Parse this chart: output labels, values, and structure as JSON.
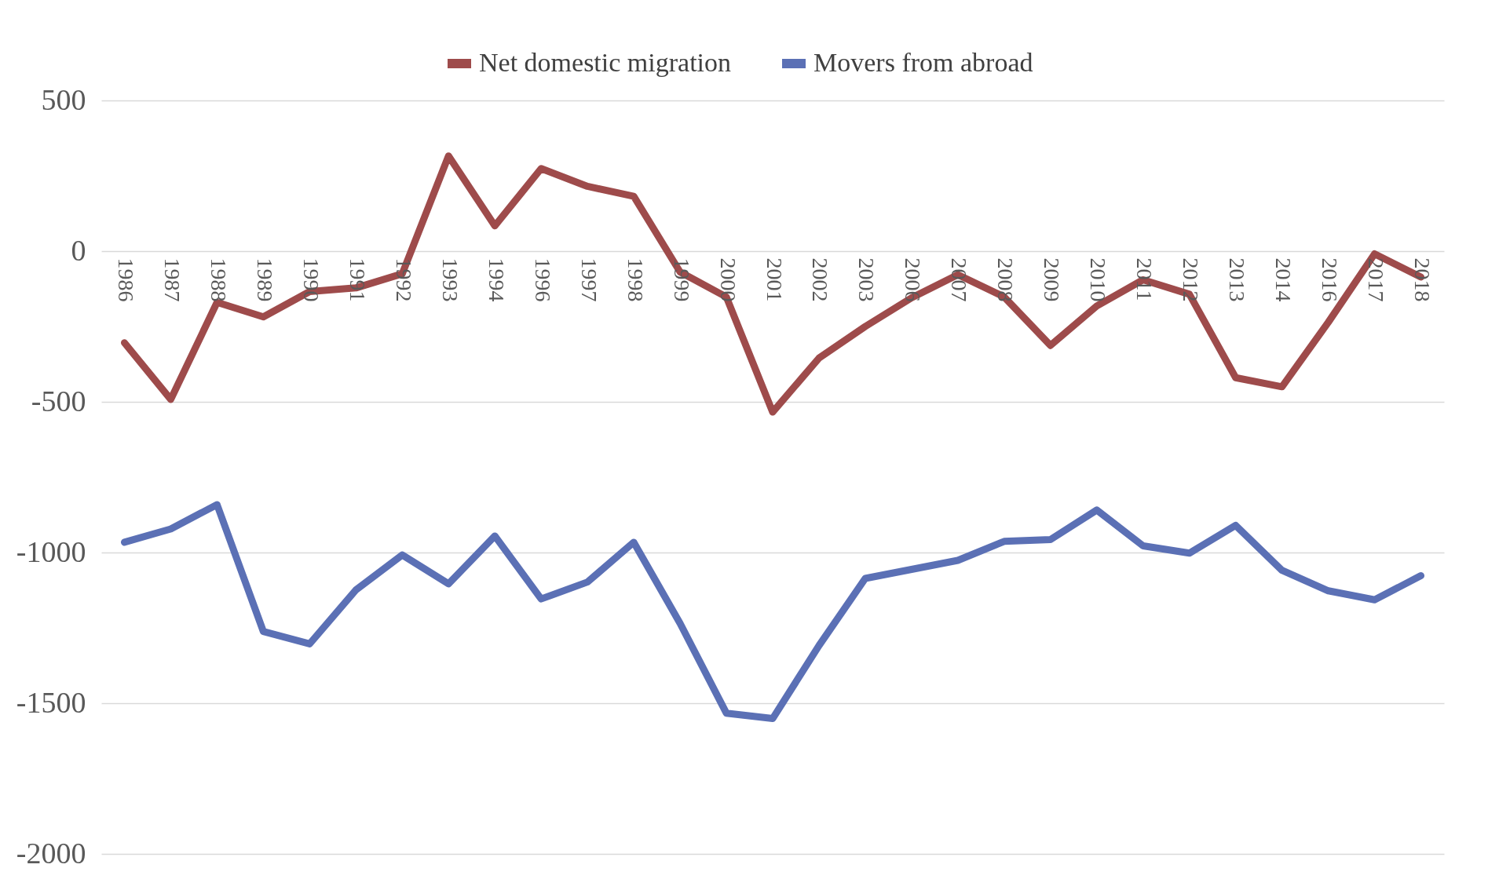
{
  "chart_data": {
    "type": "line",
    "categories": [
      "1986",
      "1987",
      "1988",
      "1989",
      "1990",
      "1991",
      "1992",
      "1993",
      "1994",
      "1996",
      "1997",
      "1998",
      "1999",
      "2000",
      "2001",
      "2002",
      "2003",
      "2006",
      "2007",
      "2008",
      "2009",
      "2010",
      "2011",
      "2012",
      "2013",
      "2014",
      "2016",
      "2017",
      "2018"
    ],
    "series": [
      {
        "name": "Net domestic migration",
        "color": "#9e4b4b",
        "values": [
          -304,
          -492,
          -170,
          -218,
          -134,
          -122,
          -75,
          316,
          84,
          274,
          215,
          182,
          -69,
          -152,
          -534,
          -355,
          -250,
          -155,
          -78,
          -152,
          -313,
          -182,
          -95,
          -143,
          -420,
          -450,
          -236,
          -9,
          -86
        ]
      },
      {
        "name": "Movers from abroad",
        "color": "#5b70b5",
        "values": [
          -966,
          -922,
          -841,
          -1262,
          -1303,
          -1124,
          -1008,
          -1104,
          -945,
          -1154,
          -1098,
          -966,
          -1235,
          -1533,
          -1551,
          -1309,
          -1086,
          -1056,
          -1026,
          -963,
          -957,
          -859,
          -978,
          -1002,
          -910,
          -1059,
          -1127,
          -1157,
          -1077
        ]
      }
    ],
    "ylim": [
      -2000,
      500
    ],
    "yticks": [
      -2000,
      -1500,
      -1000,
      -500,
      0,
      500
    ],
    "grid": "y",
    "legend": "top",
    "line_style": "solid"
  }
}
